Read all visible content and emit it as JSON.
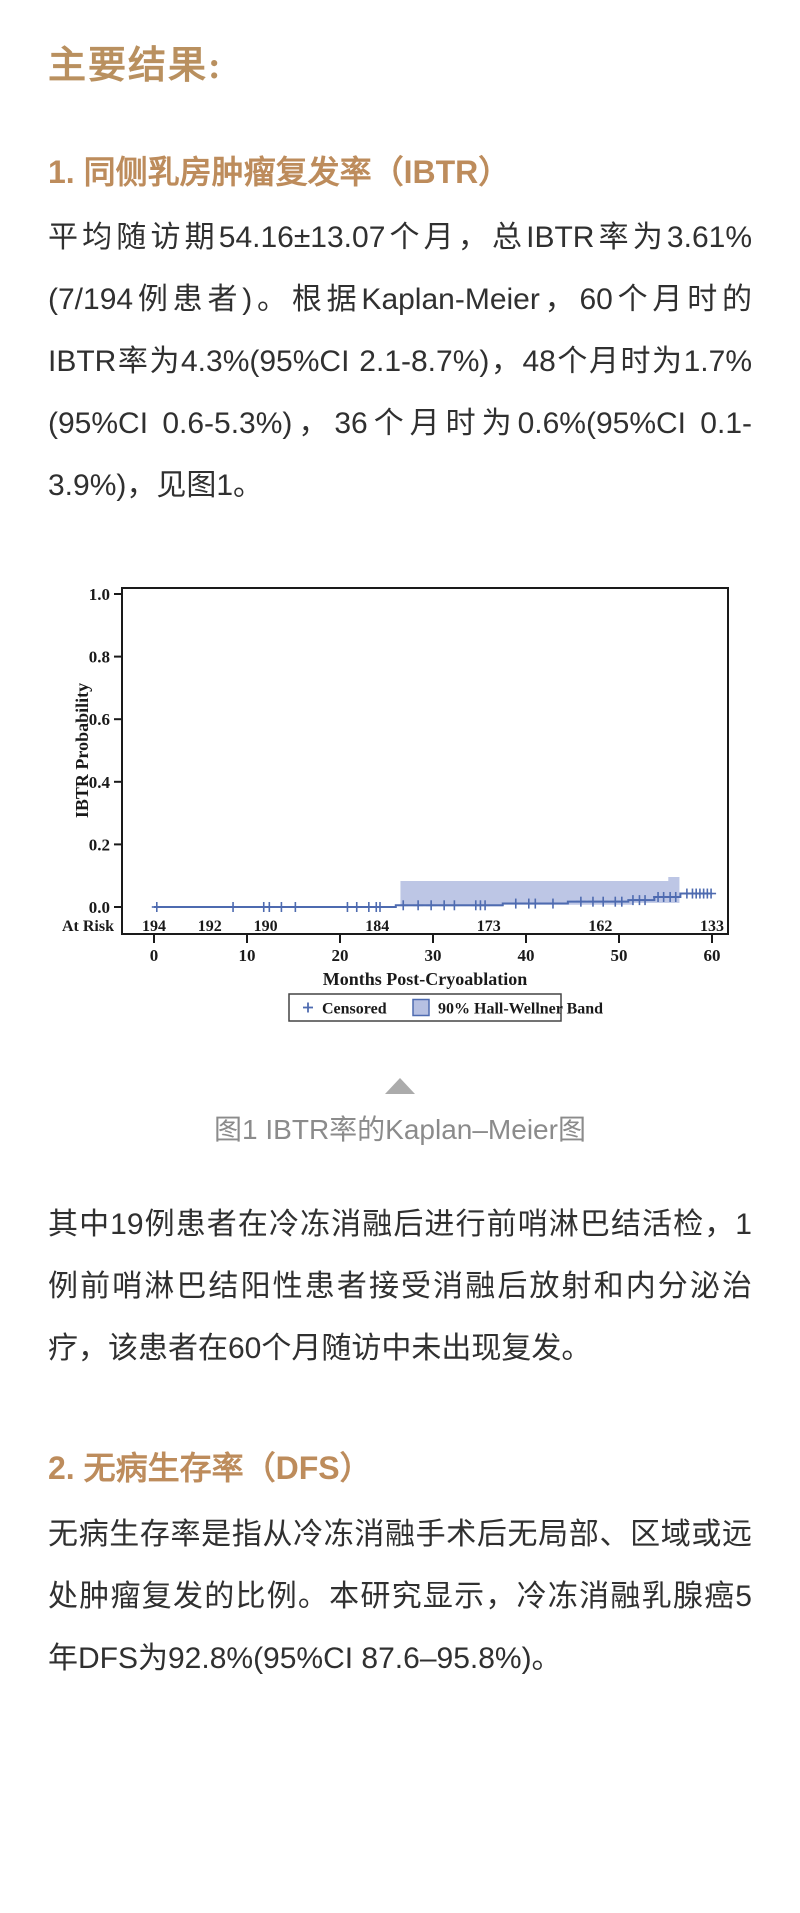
{
  "page": {
    "title": "主要结果:",
    "background": "#ffffff",
    "colors": {
      "title_gold": "#b9905f",
      "section_heading_tan": "#bd8c5c",
      "body_text": "#303030",
      "caption_gray": "#8b8b8b",
      "triangle_gray": "#ababab",
      "curve_blue": "#4e6bb0",
      "band_blue": "#b6c0e2"
    }
  },
  "sections": [
    {
      "heading": "1. 同侧乳房肿瘤复发率（IBTR）",
      "paragraphs": [
        "平均随访期54.16±13.07个月，总IBTR率为3.61% (7/194例患者)。根据Kaplan-Meier，60个月时的IBTR率为4.3%(95%CI 2.1-8.7%)，48个月时为1.7%(95%CI 0.6-5.3%)，36个月时为0.6%(95%CI 0.1-3.9%)，见图1。",
        "其中19例患者在冷冻消融后进行前哨淋巴结活检，1例前哨淋巴结阳性患者接受消融后放射和内分泌治疗，该患者在60个月随访中未出现复发。"
      ]
    },
    {
      "heading": "2. 无病生存率（DFS）",
      "paragraphs": [
        "无病生存率是指从冷冻消融手术后无局部、区域或远处肿瘤复发的比例。本研究显示，冷冻消融乳腺癌5年DFS为92.8%(95%CI 87.6–95.8%)。"
      ]
    }
  ],
  "figure": {
    "caption": "图1 IBTR率的Kaplan–Meier图"
  },
  "chart_data": {
    "type": "line",
    "subtype": "kaplan-meier-step",
    "title": "",
    "xlabel": "Months Post-Cryoablation",
    "ylabel": "IBTR Probability",
    "xlim": [
      0,
      60
    ],
    "ylim": [
      0,
      1.0
    ],
    "x_ticks": [
      0,
      10,
      20,
      30,
      40,
      50,
      60
    ],
    "y_ticks": [
      0.0,
      0.2,
      0.4,
      0.6,
      0.8,
      1.0
    ],
    "grid": false,
    "legend_position": "bottom",
    "at_risk_label": "At Risk",
    "at_risk": [
      {
        "month": 0,
        "n": 194
      },
      {
        "month": 6,
        "n": 192
      },
      {
        "month": 12,
        "n": 190
      },
      {
        "month": 24,
        "n": 184
      },
      {
        "month": 36,
        "n": 173
      },
      {
        "month": 48,
        "n": 162
      },
      {
        "month": 60,
        "n": 133
      }
    ],
    "km_curve": {
      "name": "IBTR probability",
      "color": "#4e6bb0",
      "steps": [
        [
          0,
          0
        ],
        [
          26,
          0.0055
        ],
        [
          37.5,
          0.011
        ],
        [
          44.5,
          0.017
        ],
        [
          51,
          0.022
        ],
        [
          53.8,
          0.032
        ],
        [
          56.6,
          0.043
        ],
        [
          59.8,
          0.043
        ]
      ]
    },
    "censored": [
      [
        0.3,
        0
      ],
      [
        8.5,
        0
      ],
      [
        11.8,
        0
      ],
      [
        12.4,
        0
      ],
      [
        13.7,
        0
      ],
      [
        15.2,
        0
      ],
      [
        20.8,
        0
      ],
      [
        21.8,
        0
      ],
      [
        23.1,
        0
      ],
      [
        23.9,
        0
      ],
      [
        24.3,
        0
      ],
      [
        26.8,
        0.0055
      ],
      [
        28.4,
        0.0055
      ],
      [
        29.8,
        0.0055
      ],
      [
        31.2,
        0.0055
      ],
      [
        32.3,
        0.0055
      ],
      [
        34.6,
        0.0055
      ],
      [
        35.1,
        0.0055
      ],
      [
        35.6,
        0.0055
      ],
      [
        38.9,
        0.011
      ],
      [
        40.3,
        0.011
      ],
      [
        41.0,
        0.011
      ],
      [
        42.9,
        0.011
      ],
      [
        45.9,
        0.017
      ],
      [
        47.2,
        0.017
      ],
      [
        48.3,
        0.017
      ],
      [
        49.6,
        0.017
      ],
      [
        50.3,
        0.017
      ],
      [
        51.5,
        0.022
      ],
      [
        52.2,
        0.022
      ],
      [
        52.8,
        0.022
      ],
      [
        54.2,
        0.032
      ],
      [
        54.8,
        0.032
      ],
      [
        55.5,
        0.032
      ],
      [
        56.1,
        0.032
      ],
      [
        57.3,
        0.043
      ],
      [
        57.9,
        0.043
      ],
      [
        58.3,
        0.043
      ],
      [
        58.7,
        0.043
      ],
      [
        59.1,
        0.043
      ],
      [
        59.5,
        0.043
      ],
      [
        59.9,
        0.043
      ]
    ],
    "band": {
      "label": "90% Hall-Wellner Band",
      "color": "#b6c0e2",
      "upper": [
        [
          26.5,
          0.083
        ],
        [
          55.3,
          0.083
        ],
        [
          55.3,
          0.096
        ],
        [
          56.5,
          0.096
        ]
      ],
      "lower": [
        [
          26.5,
          0.002
        ],
        [
          37.5,
          0.002
        ],
        [
          37.5,
          0.007
        ],
        [
          51.5,
          0.007
        ],
        [
          51.5,
          0.013
        ],
        [
          56.5,
          0.013
        ]
      ]
    },
    "legend": [
      {
        "marker": "plus",
        "label": "Censored"
      },
      {
        "marker": "square",
        "label": "90% Hall-Wellner Band"
      }
    ]
  }
}
